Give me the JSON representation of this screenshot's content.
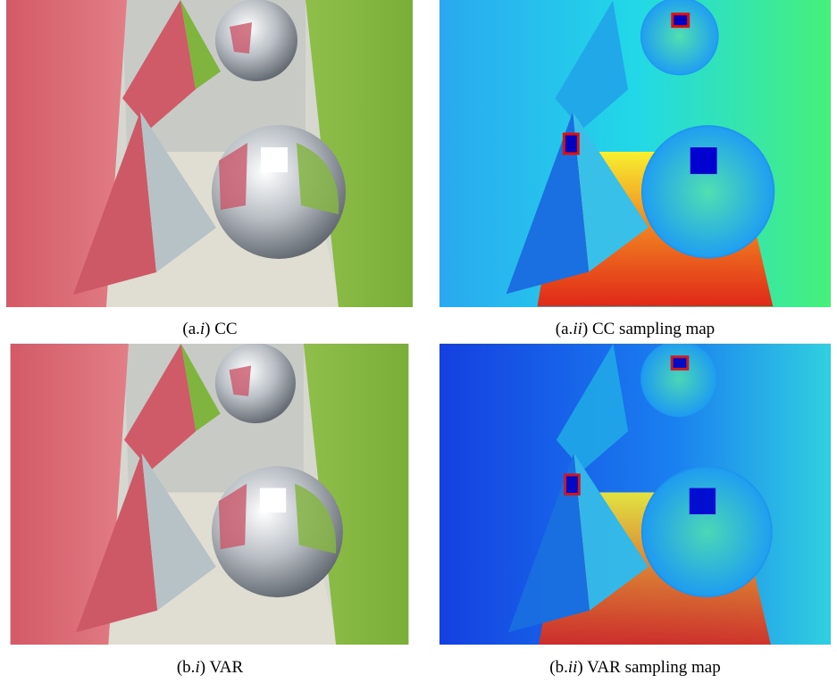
{
  "figures": [
    {
      "caption": [
        "(a.",
        "i",
        ") CC"
      ]
    },
    {
      "caption": [
        "(a.",
        "ii",
        ") CC sampling map"
      ]
    },
    {
      "caption": [
        "(b.",
        "i",
        ") VAR"
      ]
    },
    {
      "caption": [
        "(b.",
        "ii",
        ") VAR sampling map"
      ]
    }
  ]
}
